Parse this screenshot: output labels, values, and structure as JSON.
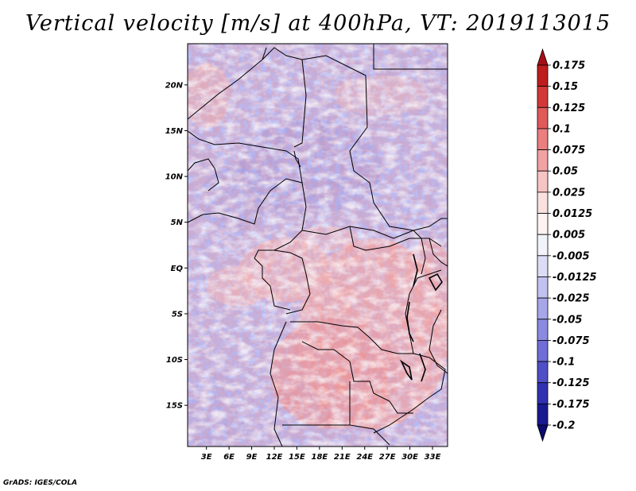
{
  "title": "Vertical velocity [m/s] at 400hPa, VT: 2019113015",
  "credit": "GrADS: IGES/COLA",
  "map": {
    "lat_labels": [
      "20N",
      "15N",
      "10N",
      "5N",
      "EQ",
      "5S",
      "10S",
      "15S"
    ],
    "lon_labels": [
      "3E",
      "6E",
      "9E",
      "12E",
      "15E",
      "18E",
      "21E",
      "24E",
      "27E",
      "30E",
      "33E"
    ],
    "lat_range": [
      -19.5,
      24.5
    ],
    "lon_range": [
      0.5,
      35.0
    ]
  },
  "colorbar": {
    "levels": [
      "0.175",
      "0.15",
      "0.125",
      "0.1",
      "0.075",
      "0.05",
      "0.025",
      "0.0125",
      "0.005",
      "-0.005",
      "-0.0125",
      "-0.025",
      "-0.05",
      "-0.075",
      "-0.1",
      "-0.125",
      "-0.175",
      "-0.2"
    ],
    "colors": [
      "#a50f15",
      "#be1d1d",
      "#d33838",
      "#e05a5a",
      "#eb7e7e",
      "#f2a2a2",
      "#f7c4c4",
      "#fbe0e0",
      "#fdf3f3",
      "#f2f2fb",
      "#dcdcf6",
      "#c2c2f0",
      "#a6a6e8",
      "#8a8ae0",
      "#6e6ed6",
      "#4f4fc8",
      "#3030b0",
      "#191990",
      "#0b0b70"
    ]
  }
}
